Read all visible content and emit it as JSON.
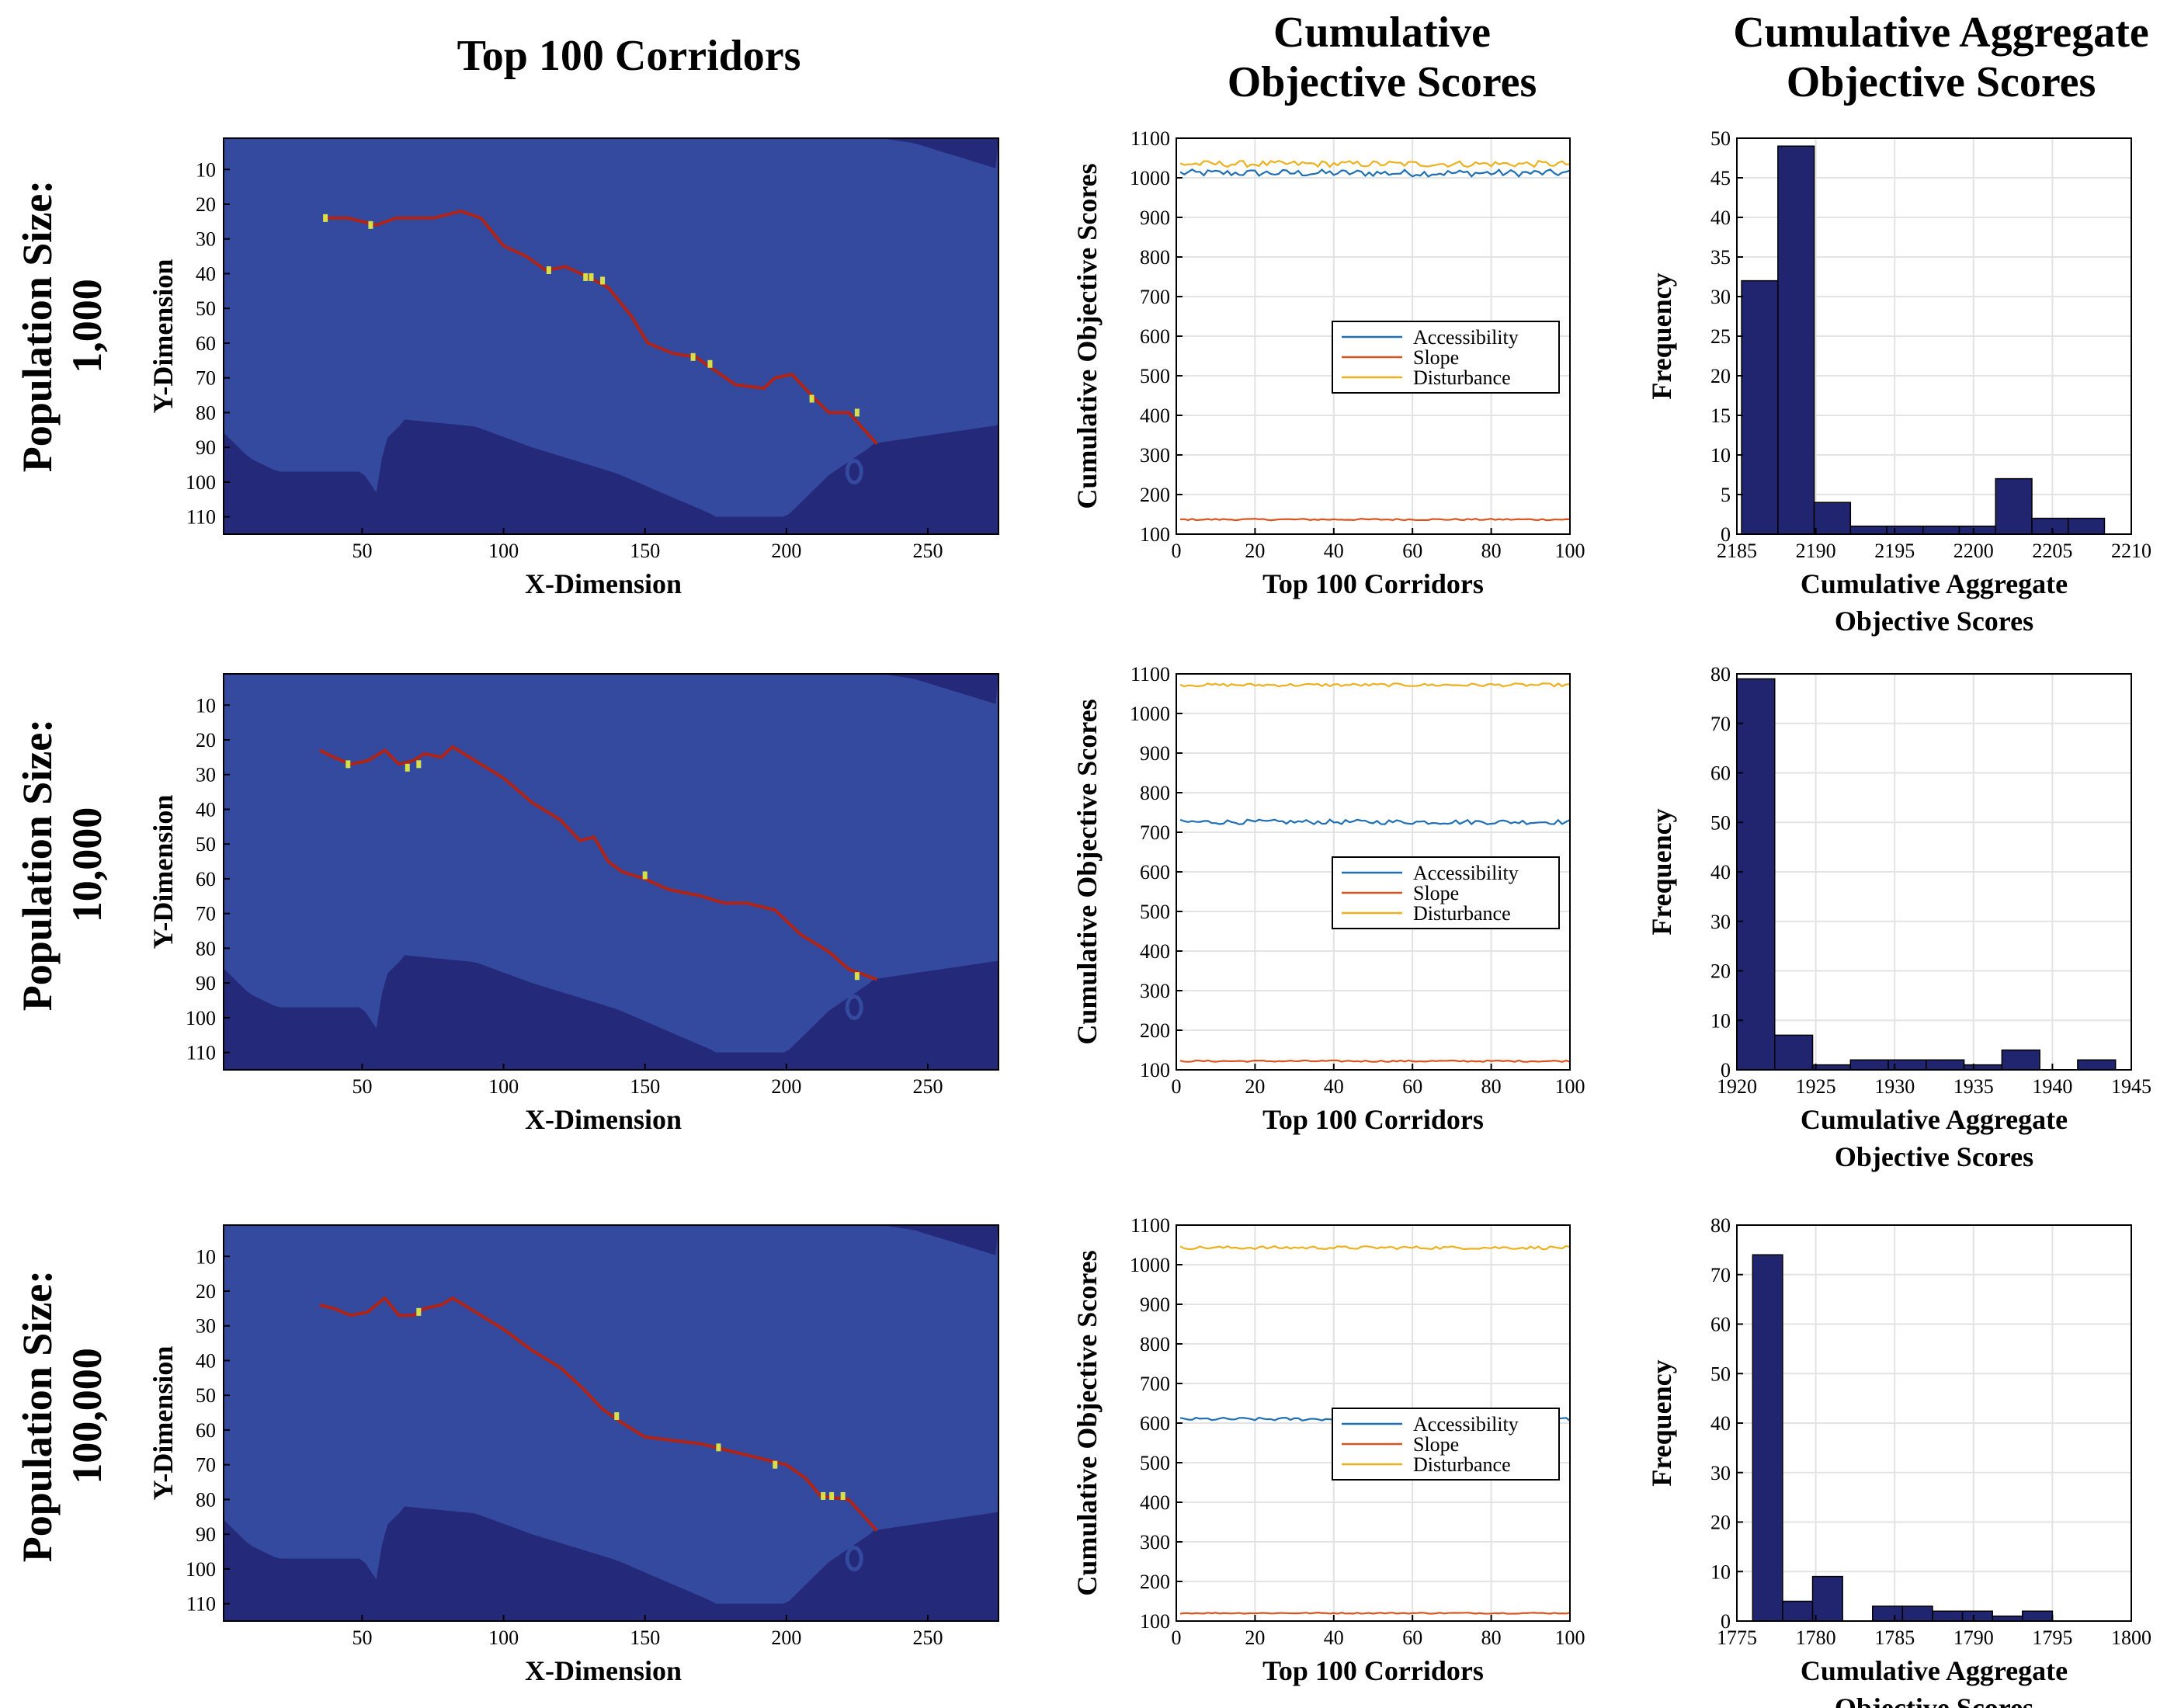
{
  "columns": {
    "corridors_title": "Top 100 Corridors",
    "objective_title_line1": "Cumulative",
    "objective_title_line2": "Objective Scores",
    "aggregate_title_line1": "Cumulative Aggregate",
    "aggregate_title_line2": "Objective Scores"
  },
  "rows": [
    {
      "label_line1": "Population Size:",
      "label_line2": "1,000"
    },
    {
      "label_line1": "Population Size:",
      "label_line2": "10,000"
    },
    {
      "label_line1": "Population Size:",
      "label_line2": "100,000"
    }
  ],
  "colors": {
    "map_dark": "#25297a",
    "map_mid": "#344a9e",
    "path_red": "#b02418",
    "path_yellow": "#d6e04a",
    "accessibility": "#1f6fb4",
    "slope": "#d9541e",
    "disturbance": "#edb120",
    "hist_fill": "#21246f"
  },
  "chart_data": [
    {
      "type": "heatmap",
      "row": 0,
      "xlabel": "X-Dimension",
      "ylabel": "Y-Dimension",
      "xticks": [
        50,
        100,
        150,
        200,
        250
      ],
      "yticks": [
        10,
        20,
        30,
        40,
        50,
        60,
        70,
        80,
        90,
        100,
        110
      ],
      "xlim": [
        1,
        275
      ],
      "ylim": [
        1,
        115
      ],
      "corridor": [
        [
          36,
          24
        ],
        [
          45,
          24
        ],
        [
          55,
          26
        ],
        [
          62,
          24
        ],
        [
          75,
          24
        ],
        [
          85,
          22
        ],
        [
          92,
          24
        ],
        [
          100,
          32
        ],
        [
          108,
          35
        ],
        [
          115,
          39
        ],
        [
          122,
          38
        ],
        [
          130,
          41
        ],
        [
          137,
          44
        ],
        [
          145,
          52
        ],
        [
          151,
          60
        ],
        [
          160,
          63
        ],
        [
          168,
          64
        ],
        [
          175,
          68
        ],
        [
          182,
          72
        ],
        [
          192,
          73
        ],
        [
          196,
          70
        ],
        [
          202,
          69
        ],
        [
          210,
          76
        ],
        [
          215,
          80
        ],
        [
          222,
          80
        ],
        [
          232,
          89
        ]
      ],
      "yellow_cells": [
        [
          37,
          24
        ],
        [
          53,
          26
        ],
        [
          116,
          39
        ],
        [
          129,
          41
        ],
        [
          131,
          41
        ],
        [
          135,
          42
        ],
        [
          167,
          64
        ],
        [
          173,
          66
        ],
        [
          209,
          76
        ],
        [
          225,
          80
        ]
      ]
    },
    {
      "type": "line",
      "row": 0,
      "xlabel": "Top 100 Corridors",
      "ylabel": "Cumulative Objective Scores",
      "xlim": [
        0,
        100
      ],
      "ylim": [
        100,
        1100
      ],
      "xticks": [
        0,
        20,
        40,
        60,
        80,
        100
      ],
      "yticks": [
        100,
        200,
        300,
        400,
        500,
        600,
        700,
        800,
        900,
        1000,
        1100
      ],
      "legend": "center-right",
      "series": [
        {
          "name": "Accessibility",
          "base": 1012,
          "noise": 9
        },
        {
          "name": "Slope",
          "base": 137,
          "noise": 2
        },
        {
          "name": "Disturbance",
          "base": 1035,
          "noise": 8
        }
      ]
    },
    {
      "type": "bar",
      "row": 0,
      "xlabel": "Cumulative Aggregate Objective Scores",
      "ylabel": "Frequency",
      "xlim": [
        2185,
        2210
      ],
      "ylim": [
        0,
        50
      ],
      "xticks": [
        2185,
        2190,
        2195,
        2200,
        2205,
        2210
      ],
      "yticks": [
        0,
        5,
        10,
        15,
        20,
        25,
        30,
        35,
        40,
        45,
        50
      ],
      "bin_edges": [
        2185.3,
        2187.6,
        2189.9,
        2192.2,
        2194.5,
        2196.8,
        2199.1,
        2201.4,
        2203.7,
        2206.0,
        2208.3
      ],
      "values": [
        32,
        49,
        4,
        1,
        1,
        1,
        1,
        7,
        2,
        2
      ]
    },
    {
      "type": "heatmap",
      "row": 1,
      "xlabel": "X-Dimension",
      "ylabel": "Y-Dimension",
      "xticks": [
        50,
        100,
        150,
        200,
        250
      ],
      "yticks": [
        10,
        20,
        30,
        40,
        50,
        60,
        70,
        80,
        90,
        100,
        110
      ],
      "xlim": [
        1,
        275
      ],
      "ylim": [
        1,
        115
      ],
      "corridor": [
        [
          35,
          23
        ],
        [
          40,
          25
        ],
        [
          46,
          27
        ],
        [
          52,
          26
        ],
        [
          58,
          23
        ],
        [
          63,
          27
        ],
        [
          68,
          26
        ],
        [
          72,
          24
        ],
        [
          78,
          25
        ],
        [
          82,
          22
        ],
        [
          90,
          26
        ],
        [
          100,
          31
        ],
        [
          110,
          38
        ],
        [
          120,
          43
        ],
        [
          127,
          49
        ],
        [
          132,
          48
        ],
        [
          137,
          55
        ],
        [
          142,
          58
        ],
        [
          150,
          60
        ],
        [
          158,
          63
        ],
        [
          170,
          65
        ],
        [
          178,
          67
        ],
        [
          186,
          67
        ],
        [
          196,
          69
        ],
        [
          205,
          76
        ],
        [
          215,
          81
        ],
        [
          222,
          86
        ],
        [
          232,
          89
        ]
      ],
      "yellow_cells": [
        [
          45,
          27
        ],
        [
          66,
          28
        ],
        [
          70,
          27
        ],
        [
          150,
          59
        ],
        [
          225,
          88
        ]
      ]
    },
    {
      "type": "line",
      "row": 1,
      "xlabel": "Top 100 Corridors",
      "ylabel": "Cumulative Objective Scores",
      "xlim": [
        0,
        100
      ],
      "ylim": [
        100,
        1100
      ],
      "xticks": [
        0,
        20,
        40,
        60,
        80,
        100
      ],
      "yticks": [
        100,
        200,
        300,
        400,
        500,
        600,
        700,
        800,
        900,
        1000,
        1100
      ],
      "legend": "center-right",
      "series": [
        {
          "name": "Accessibility",
          "base": 726,
          "noise": 6
        },
        {
          "name": "Slope",
          "base": 122,
          "noise": 2
        },
        {
          "name": "Disturbance",
          "base": 1072,
          "noise": 4
        }
      ]
    },
    {
      "type": "bar",
      "row": 1,
      "xlabel": "Cumulative Aggregate Objective Scores",
      "ylabel": "Frequency",
      "xlim": [
        1920,
        1945
      ],
      "ylim": [
        0,
        80
      ],
      "xticks": [
        1920,
        1925,
        1930,
        1935,
        1940,
        1945
      ],
      "yticks": [
        0,
        10,
        20,
        30,
        40,
        50,
        60,
        70,
        80
      ],
      "bin_edges": [
        1920.0,
        1922.4,
        1924.8,
        1927.2,
        1929.6,
        1932.0,
        1934.4,
        1936.8,
        1939.2,
        1941.6,
        1944.0
      ],
      "values": [
        79,
        7,
        1,
        2,
        2,
        2,
        1,
        4,
        0,
        2
      ]
    },
    {
      "type": "heatmap",
      "row": 2,
      "xlabel": "X-Dimension",
      "ylabel": "Y-Dimension",
      "xticks": [
        50,
        100,
        150,
        200,
        250
      ],
      "yticks": [
        10,
        20,
        30,
        40,
        50,
        60,
        70,
        80,
        90,
        100,
        110
      ],
      "xlim": [
        1,
        275
      ],
      "ylim": [
        1,
        115
      ],
      "corridor": [
        [
          35,
          24
        ],
        [
          40,
          25
        ],
        [
          46,
          27
        ],
        [
          52,
          26
        ],
        [
          58,
          22
        ],
        [
          63,
          27
        ],
        [
          68,
          27
        ],
        [
          72,
          25
        ],
        [
          78,
          24
        ],
        [
          82,
          22
        ],
        [
          90,
          26
        ],
        [
          100,
          31
        ],
        [
          110,
          37
        ],
        [
          120,
          42
        ],
        [
          128,
          48
        ],
        [
          135,
          54
        ],
        [
          142,
          58
        ],
        [
          150,
          62
        ],
        [
          160,
          63
        ],
        [
          170,
          64
        ],
        [
          180,
          66
        ],
        [
          190,
          68
        ],
        [
          200,
          70
        ],
        [
          207,
          74
        ],
        [
          212,
          79
        ],
        [
          222,
          80
        ],
        [
          232,
          89
        ]
      ],
      "yellow_cells": [
        [
          70,
          26
        ],
        [
          140,
          56
        ],
        [
          176,
          65
        ],
        [
          196,
          70
        ],
        [
          213,
          79
        ],
        [
          216,
          79
        ],
        [
          220,
          79
        ]
      ]
    },
    {
      "type": "line",
      "row": 2,
      "xlabel": "Top 100 Corridors",
      "ylabel": "Cumulative Objective Scores",
      "xlim": [
        0,
        100
      ],
      "ylim": [
        100,
        1100
      ],
      "xticks": [
        0,
        20,
        40,
        60,
        80,
        100
      ],
      "yticks": [
        100,
        200,
        300,
        400,
        500,
        600,
        700,
        800,
        900,
        1000,
        1100
      ],
      "legend": "center-right",
      "series": [
        {
          "name": "Accessibility",
          "base": 610,
          "noise": 4
        },
        {
          "name": "Slope",
          "base": 120,
          "noise": 1.5
        },
        {
          "name": "Disturbance",
          "base": 1043,
          "noise": 4
        }
      ]
    },
    {
      "type": "bar",
      "row": 2,
      "xlabel": "Cumulative Aggregate Objective Scores",
      "ylabel": "Frequency",
      "xlim": [
        1775,
        1800
      ],
      "ylim": [
        0,
        80
      ],
      "xticks": [
        1775,
        1780,
        1785,
        1790,
        1795,
        1800
      ],
      "yticks": [
        0,
        10,
        20,
        30,
        40,
        50,
        60,
        70,
        80
      ],
      "bin_edges": [
        1776.0,
        1777.9,
        1779.8,
        1781.7,
        1783.6,
        1785.5,
        1787.4,
        1789.3,
        1791.2,
        1793.1,
        1795.0
      ],
      "values": [
        74,
        4,
        9,
        0,
        3,
        3,
        2,
        2,
        1,
        2
      ]
    }
  ]
}
